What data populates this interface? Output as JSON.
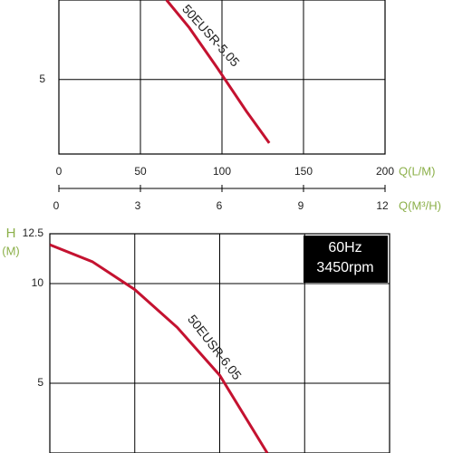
{
  "chart_data": [
    {
      "type": "line",
      "x": [
        66,
        80,
        97,
        115,
        129
      ],
      "series": [
        {
          "name": "50EUSR-5.05",
          "color": "#c41230",
          "values": [
            9,
            7.6,
            5.6,
            3.4,
            1.8
          ]
        }
      ],
      "xlim": [
        0,
        200
      ],
      "xticks": [
        0,
        50,
        100,
        150,
        200
      ],
      "xlabel": "Q(L/M)",
      "x2lim": [
        0,
        12
      ],
      "x2ticks": [
        0,
        3,
        6,
        9,
        12
      ],
      "x2label": "Q(M³/H)",
      "ylim": [
        1.25,
        9
      ],
      "yticks": [
        5
      ],
      "grid": true
    },
    {
      "type": "line",
      "x": [
        0,
        25,
        50,
        75,
        100,
        128
      ],
      "series": [
        {
          "name": "50EUSR-6.05",
          "color": "#c41230",
          "values": [
            11.95,
            11.1,
            9.7,
            7.8,
            5.4,
            1.5
          ]
        }
      ],
      "xlim": [
        0,
        200
      ],
      "xticks": [
        0,
        50,
        100,
        150,
        200
      ],
      "ylim": [
        1.5,
        12.5
      ],
      "yticks": [
        5,
        10,
        12.5
      ],
      "ylabel": "H",
      "ylabel_unit": "(M)",
      "annotation": [
        "60Hz",
        "3450rpm"
      ],
      "grid": true
    }
  ]
}
